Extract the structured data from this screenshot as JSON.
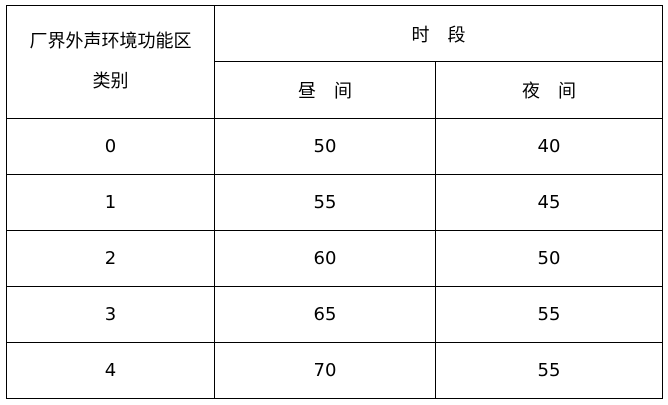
{
  "table": {
    "header_category": "厂界外声环境功能区类别",
    "header_category_line1": "厂界外声环境功能区",
    "header_category_line2": "类别",
    "header_period": "时　段",
    "header_day": "昼　间",
    "header_night": "夜　间",
    "rows": [
      {
        "category": "0",
        "day": "50",
        "night": "40"
      },
      {
        "category": "1",
        "day": "55",
        "night": "45"
      },
      {
        "category": "2",
        "day": "60",
        "night": "50"
      },
      {
        "category": "3",
        "day": "65",
        "night": "55"
      },
      {
        "category": "4",
        "day": "70",
        "night": "55"
      }
    ]
  }
}
